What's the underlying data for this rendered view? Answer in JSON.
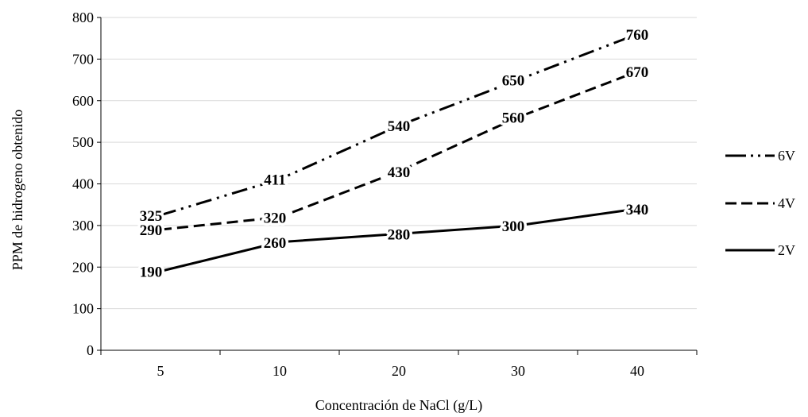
{
  "chart_data": {
    "type": "line",
    "categories": [
      "5",
      "10",
      "20",
      "30",
      "40"
    ],
    "series": [
      {
        "name": "6V",
        "values": [
          325,
          411,
          540,
          650,
          760
        ],
        "dash": "dash-dot-dot"
      },
      {
        "name": "4V",
        "values": [
          290,
          320,
          430,
          560,
          670
        ],
        "dash": "dash"
      },
      {
        "name": "2V",
        "values": [
          190,
          260,
          280,
          300,
          340
        ],
        "dash": "solid"
      }
    ],
    "title": "",
    "xlabel": "Concentración de NaCl (g/L)",
    "ylabel": "PPM de hidrogeno obtenido",
    "ylim": [
      0,
      800
    ],
    "yticks": [
      0,
      100,
      200,
      300,
      400,
      500,
      600,
      700,
      800
    ],
    "grid": true,
    "legend_position": "right",
    "line_color": "#000000"
  }
}
